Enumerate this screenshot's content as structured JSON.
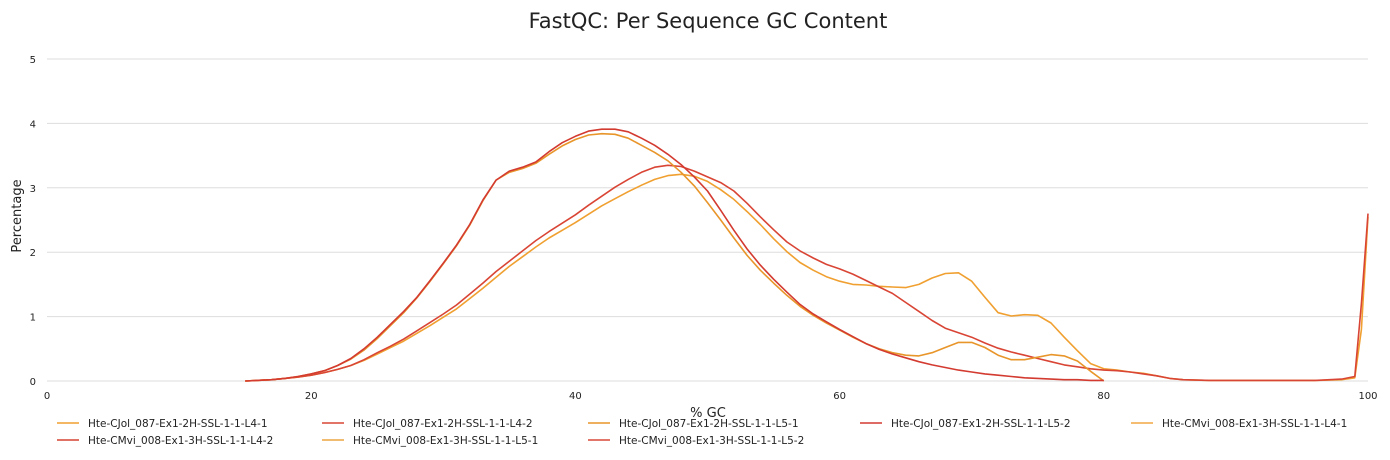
{
  "chart_data": {
    "type": "line",
    "title": "FastQC: Per Sequence GC Content",
    "xlabel": "% GC",
    "ylabel": "Percentage",
    "xlim": [
      0,
      100
    ],
    "ylim": [
      0,
      5
    ],
    "xticks": [
      0,
      20,
      40,
      60,
      80,
      100
    ],
    "yticks": [
      0,
      1,
      2,
      3,
      4,
      5
    ],
    "grid": true,
    "legend_position": "bottom",
    "series": [
      {
        "name": "Hte-CJol_087-Ex1-2H-SSL-1-1-L4-1",
        "color": "#f0a030",
        "x": [
          15,
          17,
          18,
          19,
          20,
          21,
          22,
          23,
          24,
          25,
          26,
          27,
          28,
          29,
          30,
          31,
          32,
          33,
          34,
          35,
          36,
          37,
          38,
          39,
          40,
          41,
          42,
          43,
          44,
          45,
          46,
          47,
          48,
          49,
          50,
          51,
          52,
          53,
          54,
          55,
          56,
          57,
          58,
          59,
          60,
          61,
          62,
          63,
          64,
          65,
          66,
          67,
          68,
          69,
          70,
          71,
          72,
          73,
          74,
          75,
          76,
          77,
          78,
          79,
          80,
          81,
          82,
          83,
          84,
          85,
          86,
          88,
          90,
          92,
          94,
          96,
          98,
          99,
          99.5,
          100
        ],
        "values": [
          0,
          0.02,
          0.04,
          0.06,
          0.09,
          0.13,
          0.18,
          0.24,
          0.32,
          0.42,
          0.52,
          0.62,
          0.74,
          0.86,
          0.99,
          1.12,
          1.28,
          1.44,
          1.61,
          1.78,
          1.93,
          2.08,
          2.22,
          2.34,
          2.46,
          2.59,
          2.72,
          2.83,
          2.94,
          3.04,
          3.13,
          3.19,
          3.21,
          3.18,
          3.1,
          2.97,
          2.82,
          2.63,
          2.43,
          2.21,
          2.01,
          1.84,
          1.72,
          1.62,
          1.55,
          1.5,
          1.49,
          1.47,
          1.46,
          1.45,
          1.5,
          1.6,
          1.67,
          1.68,
          1.55,
          1.3,
          1.06,
          1.01,
          1.03,
          1.02,
          0.9,
          0.68,
          0.47,
          0.27,
          0.19,
          0.17,
          0.14,
          0.12,
          0.08,
          0.04,
          0.02,
          0.01,
          0.01,
          0.01,
          0.01,
          0.01,
          0.02,
          0.05,
          0.8,
          2.55
        ]
      },
      {
        "name": "Hte-CJol_087-Ex1-2H-SSL-1-1-L4-2",
        "color": "#d94535",
        "x": [
          15,
          17,
          18,
          19,
          20,
          21,
          22,
          23,
          24,
          25,
          26,
          27,
          28,
          29,
          30,
          31,
          32,
          33,
          34,
          35,
          36,
          37,
          38,
          39,
          40,
          41,
          42,
          43,
          44,
          45,
          46,
          47,
          48,
          49,
          50,
          51,
          52,
          53,
          54,
          55,
          56,
          57,
          58,
          59,
          60,
          61,
          62,
          63,
          64,
          65,
          66,
          67,
          68,
          69,
          70,
          71,
          72,
          73,
          74,
          75,
          76,
          77,
          78,
          79,
          80,
          81,
          82,
          83,
          84,
          85,
          86,
          88,
          90,
          92,
          94,
          96,
          98,
          99,
          99.5,
          100
        ],
        "values": [
          0,
          0.02,
          0.04,
          0.06,
          0.09,
          0.13,
          0.18,
          0.24,
          0.33,
          0.44,
          0.54,
          0.65,
          0.78,
          0.91,
          1.04,
          1.18,
          1.35,
          1.52,
          1.7,
          1.86,
          2.02,
          2.18,
          2.32,
          2.45,
          2.58,
          2.73,
          2.87,
          3.01,
          3.13,
          3.24,
          3.32,
          3.35,
          3.33,
          3.26,
          3.17,
          3.08,
          2.95,
          2.76,
          2.55,
          2.35,
          2.16,
          2.02,
          1.91,
          1.81,
          1.74,
          1.66,
          1.56,
          1.46,
          1.36,
          1.22,
          1.08,
          0.94,
          0.82,
          0.75,
          0.68,
          0.59,
          0.51,
          0.45,
          0.4,
          0.35,
          0.3,
          0.25,
          0.22,
          0.19,
          0.17,
          0.16,
          0.14,
          0.11,
          0.08,
          0.04,
          0.02,
          0.01,
          0.01,
          0.01,
          0.01,
          0.01,
          0.03,
          0.07,
          1.2,
          2.6
        ]
      },
      {
        "name": "Hte-CJol_087-Ex1-2H-SSL-1-1-L5-1",
        "color": "#e8952a",
        "x": [
          15,
          17,
          18,
          19,
          20,
          21,
          22,
          23,
          24,
          25,
          26,
          27,
          28,
          29,
          30,
          31,
          32,
          33,
          34,
          35,
          36,
          37,
          38,
          39,
          40,
          41,
          42,
          43,
          44,
          45,
          46,
          47,
          48,
          49,
          50,
          51,
          52,
          53,
          54,
          55,
          56,
          57,
          58,
          59,
          60,
          61,
          62,
          63,
          64,
          65,
          66,
          67,
          68,
          69,
          70,
          71,
          72,
          73,
          74,
          75,
          76,
          77,
          78,
          79,
          80
        ],
        "values": [
          0,
          0.02,
          0.04,
          0.07,
          0.11,
          0.16,
          0.24,
          0.34,
          0.48,
          0.66,
          0.86,
          1.06,
          1.29,
          1.55,
          1.82,
          2.1,
          2.42,
          2.8,
          3.12,
          3.24,
          3.3,
          3.38,
          3.52,
          3.65,
          3.75,
          3.82,
          3.84,
          3.83,
          3.77,
          3.66,
          3.55,
          3.42,
          3.24,
          3.03,
          2.77,
          2.5,
          2.22,
          1.95,
          1.72,
          1.52,
          1.33,
          1.16,
          1.02,
          0.9,
          0.79,
          0.68,
          0.58,
          0.5,
          0.44,
          0.4,
          0.39,
          0.44,
          0.52,
          0.6,
          0.6,
          0.52,
          0.4,
          0.33,
          0.33,
          0.37,
          0.41,
          0.39,
          0.31,
          0.15,
          0.0
        ]
      },
      {
        "name": "Hte-CJol_087-Ex1-2H-SSL-1-1-L5-2",
        "color": "#d33a30",
        "x": [
          15,
          17,
          18,
          19,
          20,
          21,
          22,
          23,
          24,
          25,
          26,
          27,
          28,
          29,
          30,
          31,
          32,
          33,
          34,
          35,
          36,
          37,
          38,
          39,
          40,
          41,
          42,
          43,
          44,
          45,
          46,
          47,
          48,
          49,
          50,
          51,
          52,
          53,
          54,
          55,
          56,
          57,
          58,
          59,
          60,
          61,
          62,
          63,
          64,
          65,
          66,
          67,
          68,
          69,
          70,
          71,
          72,
          73,
          74,
          75,
          76,
          77,
          78,
          79,
          80
        ],
        "values": [
          0,
          0.02,
          0.04,
          0.07,
          0.11,
          0.16,
          0.24,
          0.35,
          0.5,
          0.68,
          0.88,
          1.08,
          1.3,
          1.56,
          1.83,
          2.11,
          2.43,
          2.81,
          3.12,
          3.26,
          3.32,
          3.4,
          3.56,
          3.7,
          3.8,
          3.88,
          3.91,
          3.91,
          3.87,
          3.77,
          3.66,
          3.52,
          3.36,
          3.17,
          2.95,
          2.65,
          2.34,
          2.05,
          1.8,
          1.58,
          1.38,
          1.19,
          1.04,
          0.92,
          0.8,
          0.69,
          0.58,
          0.49,
          0.42,
          0.36,
          0.3,
          0.25,
          0.21,
          0.17,
          0.14,
          0.11,
          0.09,
          0.07,
          0.05,
          0.04,
          0.03,
          0.02,
          0.02,
          0.01,
          0.01
        ]
      },
      {
        "name": "Hte-CMvi_008-Ex1-3H-SSL-1-1-L4-1",
        "color": "#f2a742",
        "x": [],
        "values": []
      },
      {
        "name": "Hte-CMvi_008-Ex1-3H-SSL-1-1-L4-2",
        "color": "#d64232",
        "x": [],
        "values": []
      },
      {
        "name": "Hte-CMvi_008-Ex1-3H-SSL-1-1-L5-1",
        "color": "#eda540",
        "x": [],
        "values": []
      },
      {
        "name": "Hte-CMvi_008-Ex1-3H-SSL-1-1-L5-2",
        "color": "#d8483a",
        "x": [],
        "values": []
      }
    ]
  }
}
